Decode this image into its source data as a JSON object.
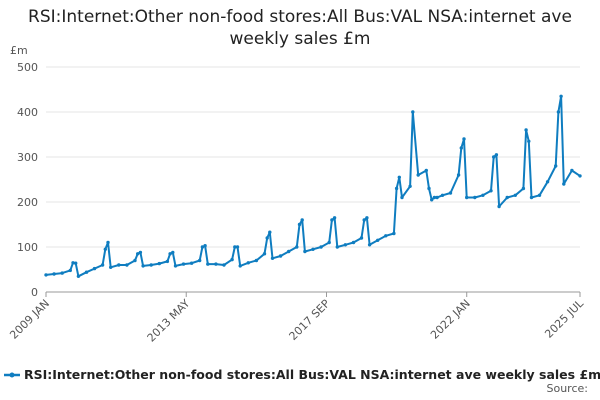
{
  "chart_data": {
    "type": "line",
    "title": "RSI:Internet:Other non-food stores:All Bus:VAL NSA:internet ave weekly sales £m",
    "ylabel": "£m",
    "xlabel": "",
    "ylim": [
      0,
      500
    ],
    "yticks": [
      0,
      100,
      200,
      300,
      400,
      500
    ],
    "xticks": [
      {
        "label": "2009 JAN",
        "date": "2009-01"
      },
      {
        "label": "2013 MAY",
        "date": "2013-05"
      },
      {
        "label": "2017 SEP",
        "date": "2017-09"
      },
      {
        "label": "2022 JAN",
        "date": "2022-01"
      },
      {
        "label": "2025 JUL",
        "date": "2025-07"
      }
    ],
    "xlim": [
      "2009-01",
      "2025-07"
    ],
    "grid": true,
    "legend": "bottom",
    "color": "#0f7dc0",
    "series": [
      {
        "name": "RSI:Internet:Other non-food stores:All Bus:VAL NSA:internet ave weekly sales £m",
        "x": [
          "2009-01",
          "2009-04",
          "2009-07",
          "2009-10",
          "2009-11",
          "2009-12",
          "2010-01",
          "2010-04",
          "2010-07",
          "2010-10",
          "2010-11",
          "2010-12",
          "2011-01",
          "2011-04",
          "2011-07",
          "2011-10",
          "2011-11",
          "2011-12",
          "2012-01",
          "2012-04",
          "2012-07",
          "2012-10",
          "2012-11",
          "2012-12",
          "2013-01",
          "2013-04",
          "2013-07",
          "2013-10",
          "2013-11",
          "2013-12",
          "2014-01",
          "2014-04",
          "2014-07",
          "2014-10",
          "2014-11",
          "2014-12",
          "2015-01",
          "2015-04",
          "2015-07",
          "2015-10",
          "2015-11",
          "2015-12",
          "2016-01",
          "2016-04",
          "2016-07",
          "2016-10",
          "2016-11",
          "2016-12",
          "2017-01",
          "2017-04",
          "2017-07",
          "2017-10",
          "2017-11",
          "2017-12",
          "2018-01",
          "2018-04",
          "2018-07",
          "2018-10",
          "2018-11",
          "2018-12",
          "2019-01",
          "2019-04",
          "2019-07",
          "2019-10",
          "2019-11",
          "2019-12",
          "2020-01",
          "2020-04",
          "2020-05",
          "2020-07",
          "2020-10",
          "2020-11",
          "2020-12",
          "2021-01",
          "2021-02",
          "2021-04",
          "2021-07",
          "2021-10",
          "2021-11",
          "2021-12",
          "2022-01",
          "2022-04",
          "2022-07",
          "2022-10",
          "2022-11",
          "2022-12",
          "2023-01",
          "2023-04",
          "2023-07",
          "2023-10",
          "2023-11",
          "2023-12",
          "2024-01",
          "2024-04",
          "2024-07",
          "2024-10",
          "2024-11",
          "2024-12",
          "2025-01",
          "2025-04",
          "2025-07"
        ],
        "values": [
          38,
          40,
          42,
          48,
          65,
          64,
          35,
          44,
          52,
          60,
          95,
          110,
          55,
          60,
          60,
          70,
          85,
          88,
          58,
          60,
          63,
          68,
          85,
          88,
          58,
          62,
          64,
          70,
          100,
          103,
          62,
          62,
          60,
          72,
          100,
          100,
          58,
          65,
          70,
          85,
          120,
          133,
          75,
          80,
          90,
          100,
          150,
          160,
          90,
          95,
          100,
          110,
          160,
          165,
          100,
          105,
          110,
          120,
          160,
          165,
          105,
          115,
          125,
          130,
          230,
          255,
          210,
          235,
          400,
          260,
          270,
          230,
          205,
          210,
          210,
          215,
          220,
          260,
          320,
          340,
          210,
          210,
          215,
          225,
          300,
          305,
          190,
          210,
          215,
          230,
          360,
          335,
          210,
          215,
          245,
          280,
          400,
          435,
          240,
          270,
          258
        ]
      }
    ]
  },
  "legend": {
    "label": "RSI:Internet:Other non-food stores:All Bus:VAL NSA:internet ave weekly sales £m"
  },
  "source": {
    "label": "Source:"
  }
}
